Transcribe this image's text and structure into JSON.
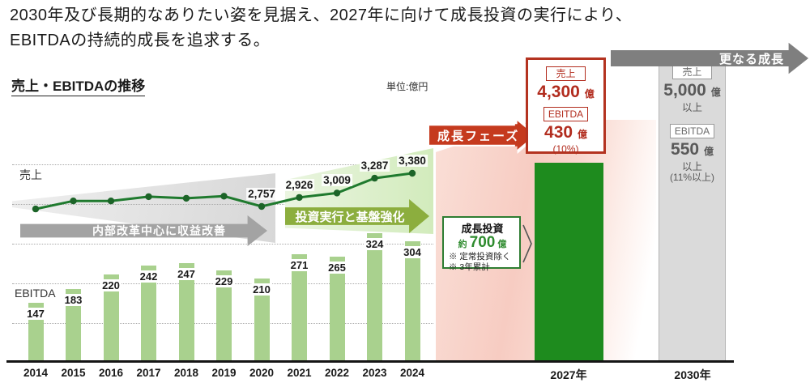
{
  "header": {
    "line1": "2030年及び長期的なありたい姿を見据え、2027年に向けて成長投資の実行により、",
    "line2": "EBITDAの持続的成長を追求する。"
  },
  "chart": {
    "title": "売上・EBITDAの推移",
    "unit": "単位:億円",
    "sales_label": "売上",
    "ebitda_label": "EBITDA"
  },
  "chart_data": {
    "type": "combo-bar-line",
    "categories": [
      "2014",
      "2015",
      "2016",
      "2017",
      "2018",
      "2019",
      "2020",
      "2021",
      "2022",
      "2023",
      "2024"
    ],
    "series": [
      {
        "name": "EBITDA",
        "type": "bar",
        "values": [
          147,
          183,
          220,
          242,
          247,
          229,
          210,
          271,
          265,
          324,
          304
        ]
      },
      {
        "name": "売上",
        "type": "line",
        "values_estimated": [
          2710,
          2860,
          2860,
          2940,
          2910,
          2950,
          2757,
          2926,
          3009,
          3287,
          3380
        ],
        "point_labels": [
          null,
          null,
          null,
          null,
          null,
          null,
          "2,757",
          "2,926",
          "3,009",
          "3,287",
          "3,380"
        ]
      }
    ],
    "y_gridlines": [
      100,
      200,
      300,
      400,
      500
    ],
    "unit": "億円",
    "grid": "dotted horizontal",
    "legend_position": "in-plot text labels"
  },
  "phase_arrows": {
    "phase1": "内部改革中心に収益改善",
    "phase2": "投資実行と基盤強化",
    "growth": "成長フェーズ",
    "further": "更なる成長"
  },
  "investment_box": {
    "title": "成長投資",
    "prefix": "約",
    "value": "700",
    "unit": "億",
    "note1": "※ 定常投資除く",
    "note2": "※ 3年累計"
  },
  "target_2027": {
    "sales_tag": "売上",
    "sales_value": "4,300",
    "sales_unit": "億",
    "ebitda_tag": "EBITDA",
    "ebitda_value": "430",
    "ebitda_unit": "億",
    "margin": "(10%)",
    "year": "2027年"
  },
  "target_2030": {
    "sales_tag": "売上",
    "sales_value": "5,000",
    "sales_unit": "億",
    "sales_more": "以上",
    "ebitda_tag": "EBITDA",
    "ebitda_value": "550",
    "ebitda_unit": "億",
    "ebitda_more": "以上",
    "margin": "(11%以上)",
    "year": "2030年"
  },
  "colors": {
    "bar_light_green": "#a9d18e",
    "line_green": "#1f7a2e",
    "dot_green": "#1c6428",
    "bar_2027_green": "#1e8b1e",
    "bar_2030_gray": "#dadada",
    "accent_red": "#b43320",
    "red_text": "#b22c1e",
    "growth_arrow_red": "#c53a1e",
    "olive_arrow": "#8cae3e",
    "gray_arrow": "#7f7f7f",
    "pink_bg": "#f7ccc2",
    "invest_green": "#2e7d32"
  }
}
